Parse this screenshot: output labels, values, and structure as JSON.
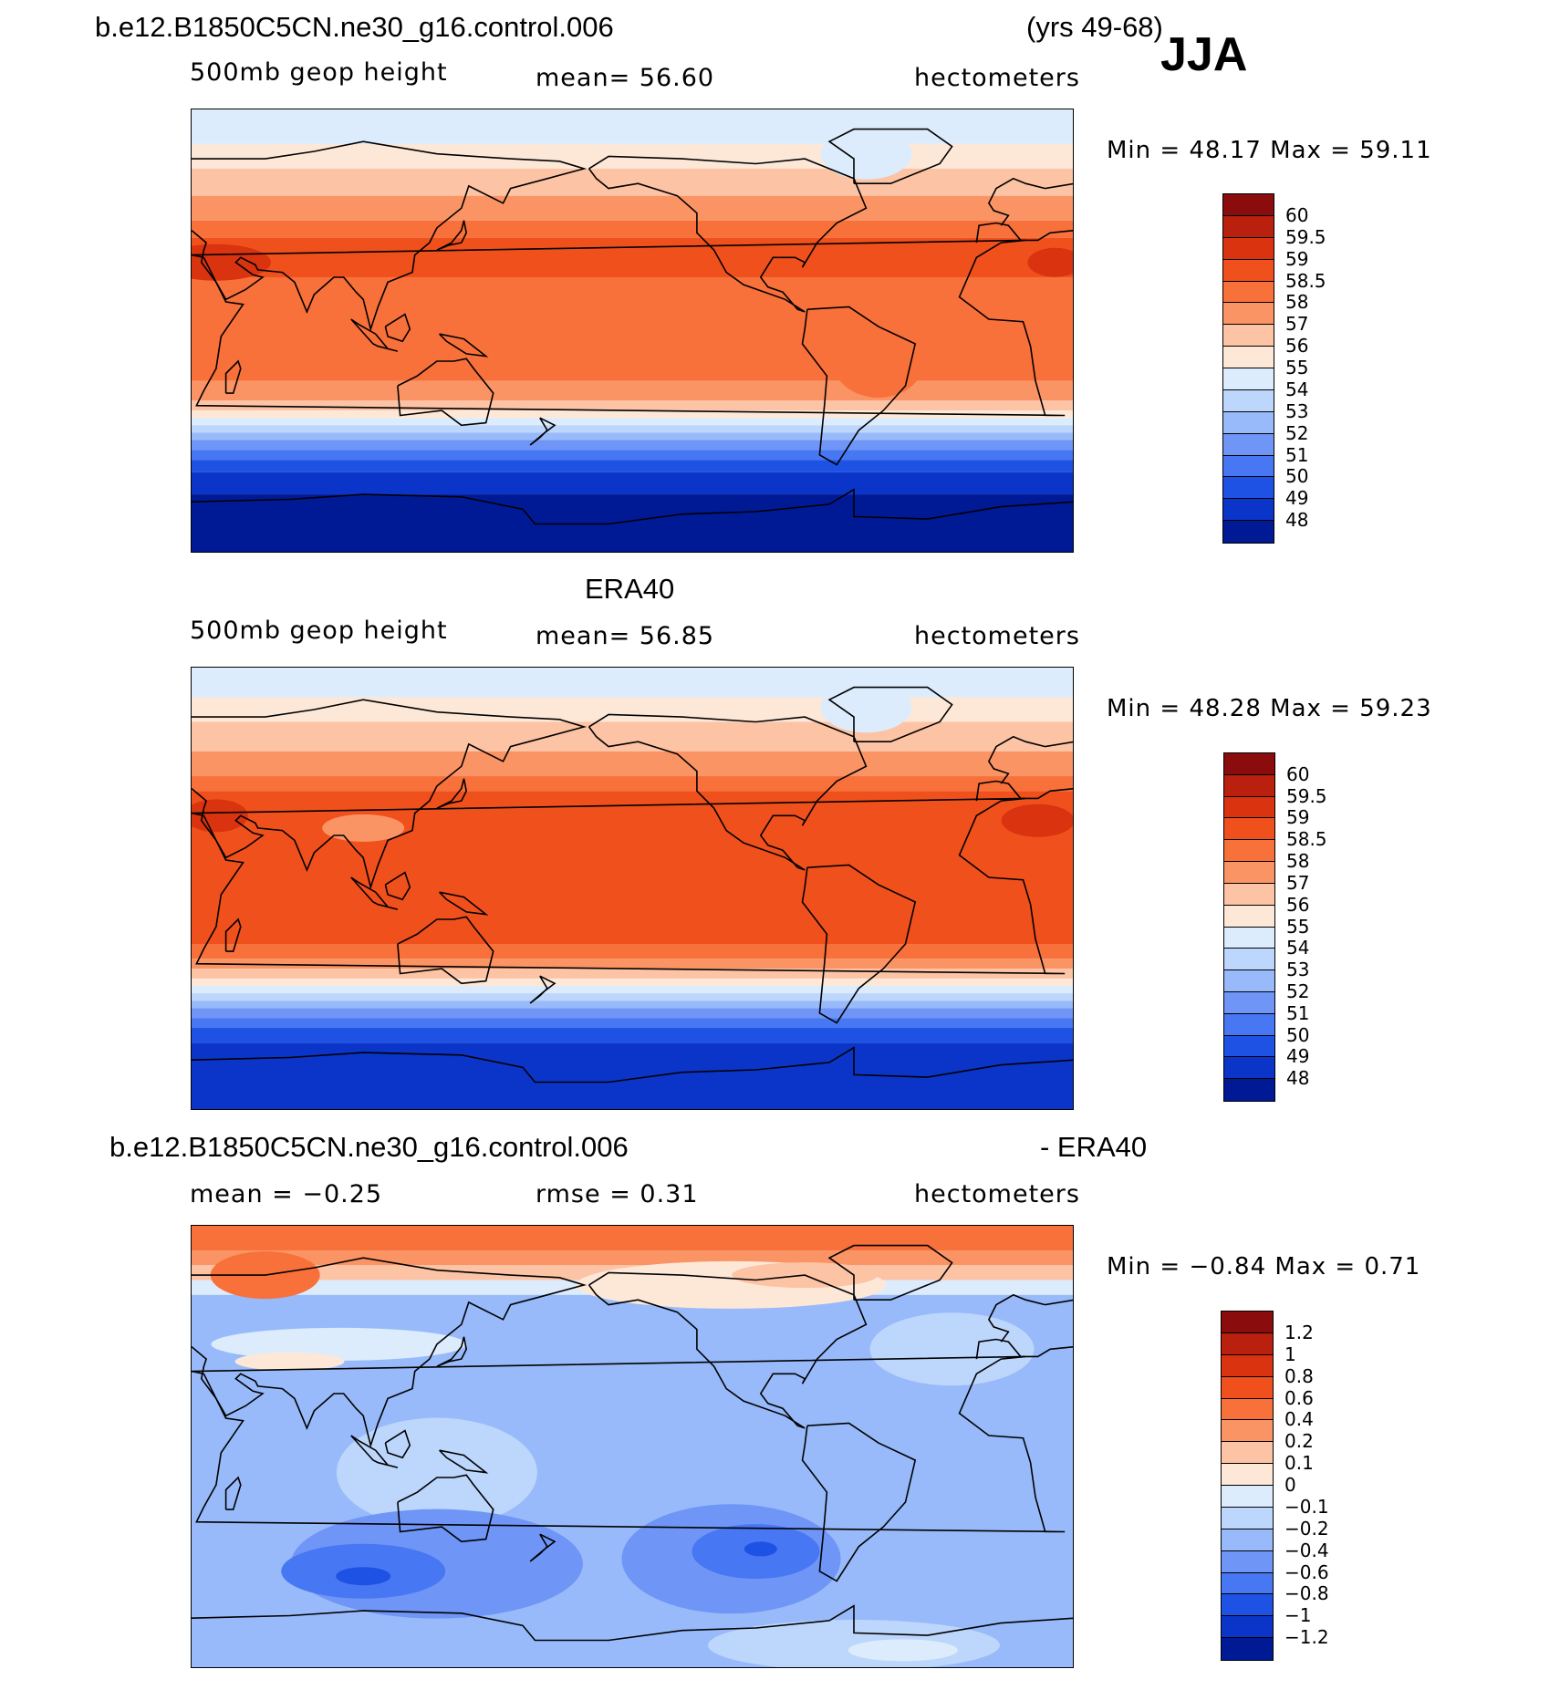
{
  "season": "JJA",
  "panels": [
    {
      "header_left": "b.e12.B1850C5CN.ne30_g16.control.006",
      "header_right": "(yrs 49-68)",
      "variable": "500mb  geop  height",
      "stat_text": "mean=   56.60",
      "units": "hectometers",
      "min_max": "Min  =    48.17  Max  =    59.11",
      "colorbar": {
        "labels": [
          "60",
          "59.5",
          "59",
          "58.5",
          "58",
          "57",
          "56",
          "55",
          "54",
          "53",
          "52",
          "51",
          "50",
          "49",
          "48"
        ],
        "colors": [
          "#8b0c0c",
          "#b9200e",
          "#d9330f",
          "#f0501c",
          "#f8703a",
          "#fb9464",
          "#fdc3a5",
          "#fde8d8",
          "#dcecfd",
          "#bdd6fc",
          "#98bafa",
          "#6f95f6",
          "#4777f3",
          "#1d52e4",
          "#0a35c8",
          "#001a96"
        ]
      }
    },
    {
      "header_center": "ERA40",
      "variable": "500mb  geop  height",
      "stat_text": "mean=   56.85",
      "units": "hectometers",
      "min_max": "Min  =    48.28  Max  =    59.23",
      "colorbar": {
        "labels": [
          "60",
          "59.5",
          "59",
          "58.5",
          "58",
          "57",
          "56",
          "55",
          "54",
          "53",
          "52",
          "51",
          "50",
          "49",
          "48"
        ],
        "colors": [
          "#8b0c0c",
          "#b9200e",
          "#d9330f",
          "#f0501c",
          "#f8703a",
          "#fb9464",
          "#fdc3a5",
          "#fde8d8",
          "#dcecfd",
          "#bdd6fc",
          "#98bafa",
          "#6f95f6",
          "#4777f3",
          "#1d52e4",
          "#0a35c8",
          "#001a96"
        ]
      }
    },
    {
      "header_left": "b.e12.B1850C5CN.ne30_g16.control.006",
      "header_right": "- ERA40",
      "stat_text_left": "mean  =   −0.25",
      "stat_text": "rmse  =     0.31",
      "units": "hectometers",
      "min_max": "Min  =   −0.84  Max  =      0.71",
      "colorbar": {
        "labels": [
          "1.2",
          "1",
          "0.8",
          "0.6",
          "0.4",
          "0.2",
          "0.1",
          "0",
          "−0.1",
          "−0.2",
          "−0.4",
          "−0.6",
          "−0.8",
          "−1",
          "−1.2"
        ],
        "colors": [
          "#8b0c0c",
          "#b9200e",
          "#d9330f",
          "#f0501c",
          "#f8703a",
          "#fb9464",
          "#fdc3a5",
          "#fde8d8",
          "#dcecfd",
          "#bdd6fc",
          "#98bafa",
          "#6f95f6",
          "#4777f3",
          "#1d52e4",
          "#0a35c8",
          "#001a96"
        ]
      }
    }
  ]
}
